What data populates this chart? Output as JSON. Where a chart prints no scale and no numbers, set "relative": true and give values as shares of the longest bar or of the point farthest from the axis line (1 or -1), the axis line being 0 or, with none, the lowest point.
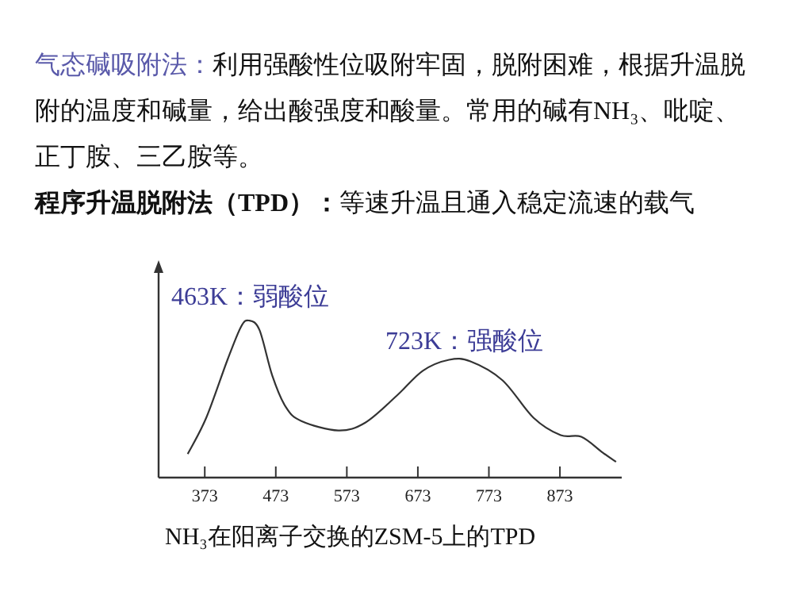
{
  "chart_data": {
    "type": "line",
    "relative": true,
    "tick_labels": "x",
    "xlim": [
      308,
      960
    ],
    "xticks": [
      373,
      473,
      573,
      673,
      773,
      873
    ],
    "series": [
      {
        "color": "#333333",
        "x": [
          349,
          375,
          405,
          424,
          435,
          450,
          468,
          487,
          509,
          561,
          599,
          643,
          680,
          717,
          747,
          792,
          836,
          874,
          903,
          933,
          952
        ],
        "values": [
          0.15,
          0.38,
          0.75,
          0.96,
          1.0,
          0.94,
          0.65,
          0.45,
          0.36,
          0.3,
          0.35,
          0.52,
          0.68,
          0.75,
          0.74,
          0.62,
          0.38,
          0.27,
          0.26,
          0.16,
          0.1
        ]
      }
    ],
    "annotations": [
      "气态碱吸附法：",
      "利用强酸性位吸附牢固，脱附困难，根据升温脱附的温度和碱量，给出酸强度和酸量。常用的碱有NH₃、吡啶、正丁胺、三乙胺等。",
      "程序升温脱附法（TPD）：",
      "等速升温且通入稳定流速的载气",
      "463K：弱酸位",
      "723K：强酸位",
      "NH₃在阳离子交换的ZSM-5上的TPD"
    ]
  }
}
